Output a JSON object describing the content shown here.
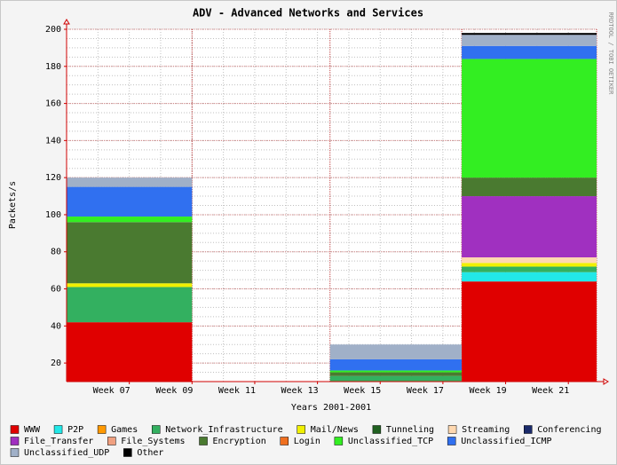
{
  "chart_data": {
    "type": "stacked_histogram",
    "title": "ADV - Advanced Networks and Services",
    "ylabel": "Packets/s",
    "xlabel": "Years 2001-2001",
    "watermark": "RRDTOOL / TOBI OETIKER",
    "bins": [
      5,
      9,
      13.4,
      17.6,
      21.9
    ],
    "xlim": [
      5,
      21.9
    ],
    "xticks": [
      {
        "value": 7,
        "label": "Week 07"
      },
      {
        "value": 9,
        "label": "Week 09"
      },
      {
        "value": 11,
        "label": "Week 11"
      },
      {
        "value": 13,
        "label": "Week 13"
      },
      {
        "value": 15,
        "label": "Week 15"
      },
      {
        "value": 17,
        "label": "Week 17"
      },
      {
        "value": 19,
        "label": "Week 19"
      },
      {
        "value": 21,
        "label": "Week 21"
      }
    ],
    "ylim": [
      10,
      200
    ],
    "yticks": [
      20,
      40,
      60,
      80,
      100,
      120,
      140,
      160,
      180,
      200
    ],
    "grid": true,
    "series": [
      {
        "name": "WWW",
        "color": "#e00000",
        "values": [
          42,
          0,
          0,
          64
        ]
      },
      {
        "name": "P2P",
        "color": "#22e8e8",
        "values": [
          0,
          0,
          0,
          5
        ]
      },
      {
        "name": "Games",
        "color": "#ff9900",
        "values": [
          0,
          0,
          0,
          0
        ]
      },
      {
        "name": "Network_Infrastructure",
        "color": "#33b060",
        "values": [
          19,
          0,
          13,
          3
        ]
      },
      {
        "name": "Mail/News",
        "color": "#f0f000",
        "values": [
          2,
          0,
          0,
          2
        ]
      },
      {
        "name": "Tunneling",
        "color": "#206020",
        "values": [
          0,
          0,
          0,
          0
        ]
      },
      {
        "name": "Streaming",
        "color": "#ffd8b0",
        "values": [
          0,
          0,
          0,
          3
        ]
      },
      {
        "name": "Conferencing",
        "color": "#1a2a6a",
        "values": [
          0,
          0,
          0,
          0
        ]
      },
      {
        "name": "File_Transfer",
        "color": "#a030c0",
        "values": [
          0,
          0,
          0,
          33
        ]
      },
      {
        "name": "File_Systems",
        "color": "#f0a080",
        "values": [
          0,
          0,
          0,
          0
        ]
      },
      {
        "name": "Encryption",
        "color": "#4a7a30",
        "values": [
          33,
          0,
          2,
          10
        ]
      },
      {
        "name": "Login",
        "color": "#f07020",
        "values": [
          0,
          0,
          0,
          0
        ]
      },
      {
        "name": "Unclassified_TCP",
        "color": "#33ee22",
        "values": [
          3,
          0,
          1,
          64
        ]
      },
      {
        "name": "Unclassified_ICMP",
        "color": "#3070f0",
        "values": [
          16,
          0,
          6,
          7
        ]
      },
      {
        "name": "Unclassified_UDP",
        "color": "#a0b0c8",
        "values": [
          5,
          0,
          8,
          6
        ]
      },
      {
        "name": "Other",
        "color": "#000000",
        "values": [
          0,
          0,
          0,
          1
        ]
      }
    ]
  }
}
